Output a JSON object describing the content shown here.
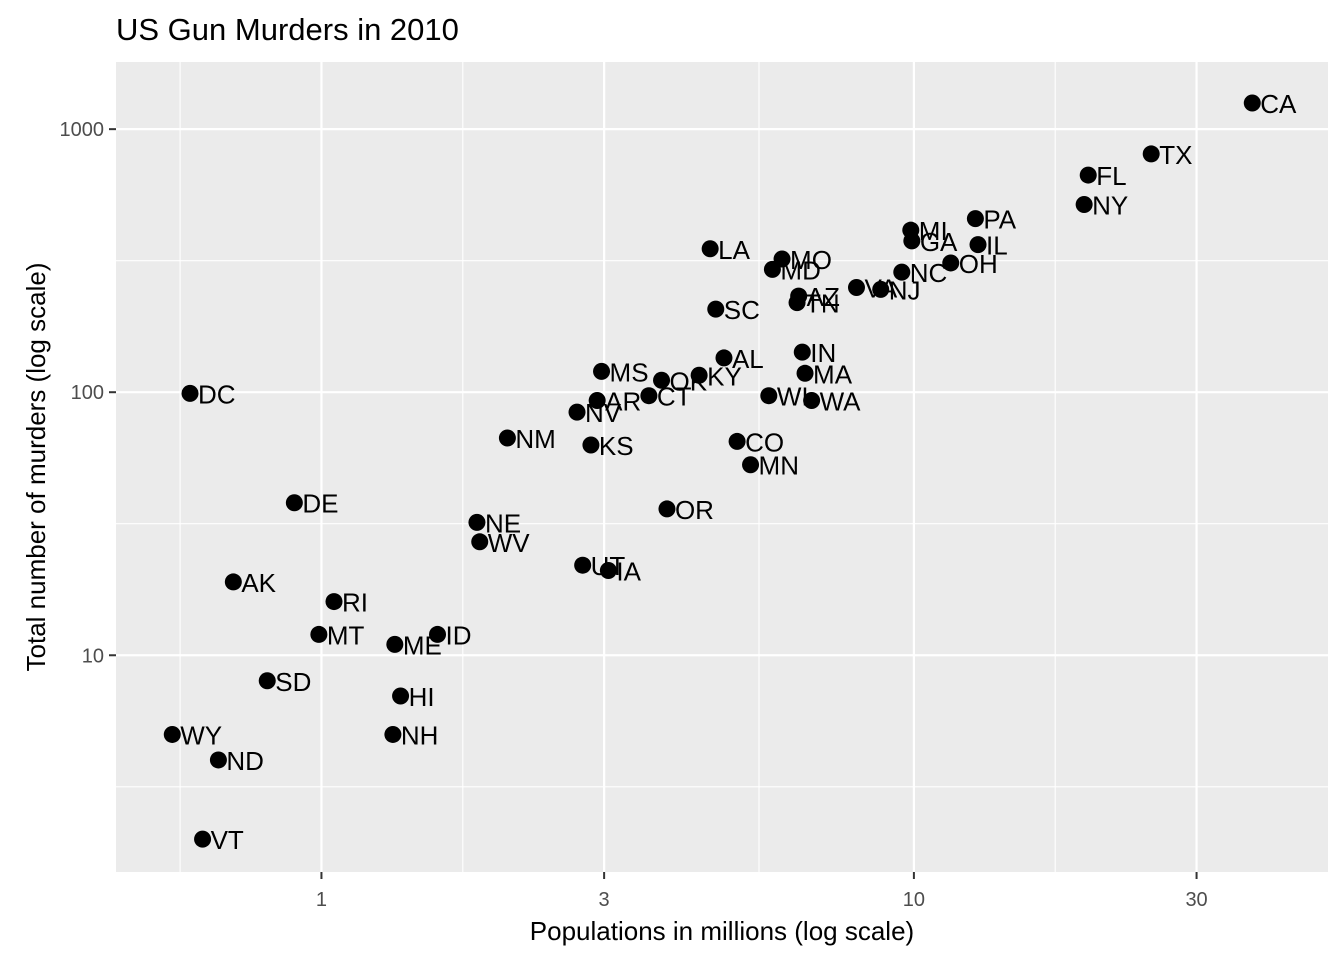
{
  "chart_data": {
    "type": "scatter",
    "title": "US Gun Murders in 2010",
    "xlabel": "Populations in millions (log scale)",
    "ylabel": "Total number of murders (log scale)",
    "x_scale": "log10",
    "y_scale": "log10",
    "xlim": [
      0.45,
      50
    ],
    "ylim": [
      1.5,
      1800
    ],
    "x_ticks": [
      1,
      3,
      10,
      30
    ],
    "x_tick_labels": [
      "1",
      "3",
      "10",
      "30"
    ],
    "y_ticks": [
      10,
      100,
      1000
    ],
    "y_tick_labels": [
      "10",
      "100",
      "1000"
    ],
    "grid": true,
    "legend": "none",
    "point_color": "#000000",
    "background_color": "#ebebeb",
    "points": [
      {
        "label": "CA",
        "x": 37.25,
        "y": 1257
      },
      {
        "label": "TX",
        "x": 25.15,
        "y": 805
      },
      {
        "label": "FL",
        "x": 19.69,
        "y": 669
      },
      {
        "label": "NY",
        "x": 19.38,
        "y": 517
      },
      {
        "label": "PA",
        "x": 12.7,
        "y": 457
      },
      {
        "label": "MI",
        "x": 9.88,
        "y": 413
      },
      {
        "label": "GA",
        "x": 9.92,
        "y": 376
      },
      {
        "label": "IL",
        "x": 12.83,
        "y": 364
      },
      {
        "label": "OH",
        "x": 11.54,
        "y": 310
      },
      {
        "label": "NC",
        "x": 9.54,
        "y": 286
      },
      {
        "label": "LA",
        "x": 4.53,
        "y": 351
      },
      {
        "label": "MO",
        "x": 5.99,
        "y": 321
      },
      {
        "label": "MD",
        "x": 5.77,
        "y": 293
      },
      {
        "label": "VA",
        "x": 8.0,
        "y": 250
      },
      {
        "label": "NJ",
        "x": 8.79,
        "y": 246
      },
      {
        "label": "AZ",
        "x": 6.39,
        "y": 232
      },
      {
        "label": "TN",
        "x": 6.35,
        "y": 219
      },
      {
        "label": "SC",
        "x": 4.63,
        "y": 207
      },
      {
        "label": "IN",
        "x": 6.48,
        "y": 142
      },
      {
        "label": "AL",
        "x": 4.78,
        "y": 135
      },
      {
        "label": "MA",
        "x": 6.55,
        "y": 118
      },
      {
        "label": "MS",
        "x": 2.97,
        "y": 120
      },
      {
        "label": "OK",
        "x": 3.75,
        "y": 111
      },
      {
        "label": "KY",
        "x": 4.34,
        "y": 116
      },
      {
        "label": "WI",
        "x": 5.69,
        "y": 97
      },
      {
        "label": "WA",
        "x": 6.72,
        "y": 93
      },
      {
        "label": "AR",
        "x": 2.92,
        "y": 93
      },
      {
        "label": "CT",
        "x": 3.57,
        "y": 97
      },
      {
        "label": "DC",
        "x": 0.6,
        "y": 99
      },
      {
        "label": "NV",
        "x": 2.7,
        "y": 84
      },
      {
        "label": "NM",
        "x": 2.06,
        "y": 67
      },
      {
        "label": "KS",
        "x": 2.85,
        "y": 63
      },
      {
        "label": "CO",
        "x": 5.03,
        "y": 65
      },
      {
        "label": "MN",
        "x": 5.3,
        "y": 53
      },
      {
        "label": "DE",
        "x": 0.9,
        "y": 38
      },
      {
        "label": "OR",
        "x": 3.83,
        "y": 36
      },
      {
        "label": "NE",
        "x": 1.83,
        "y": 32
      },
      {
        "label": "WV",
        "x": 1.85,
        "y": 27
      },
      {
        "label": "UT",
        "x": 2.76,
        "y": 22
      },
      {
        "label": "IA",
        "x": 3.05,
        "y": 21
      },
      {
        "label": "AK",
        "x": 0.71,
        "y": 19
      },
      {
        "label": "RI",
        "x": 1.05,
        "y": 16
      },
      {
        "label": "MT",
        "x": 0.99,
        "y": 12
      },
      {
        "label": "ME",
        "x": 1.33,
        "y": 11
      },
      {
        "label": "ID",
        "x": 1.57,
        "y": 12
      },
      {
        "label": "SD",
        "x": 0.81,
        "y": 8
      },
      {
        "label": "HI",
        "x": 1.36,
        "y": 7
      },
      {
        "label": "NH",
        "x": 1.32,
        "y": 5
      },
      {
        "label": "WY",
        "x": 0.56,
        "y": 5
      },
      {
        "label": "ND",
        "x": 0.67,
        "y": 4
      },
      {
        "label": "VT",
        "x": 0.63,
        "y": 2
      }
    ]
  }
}
